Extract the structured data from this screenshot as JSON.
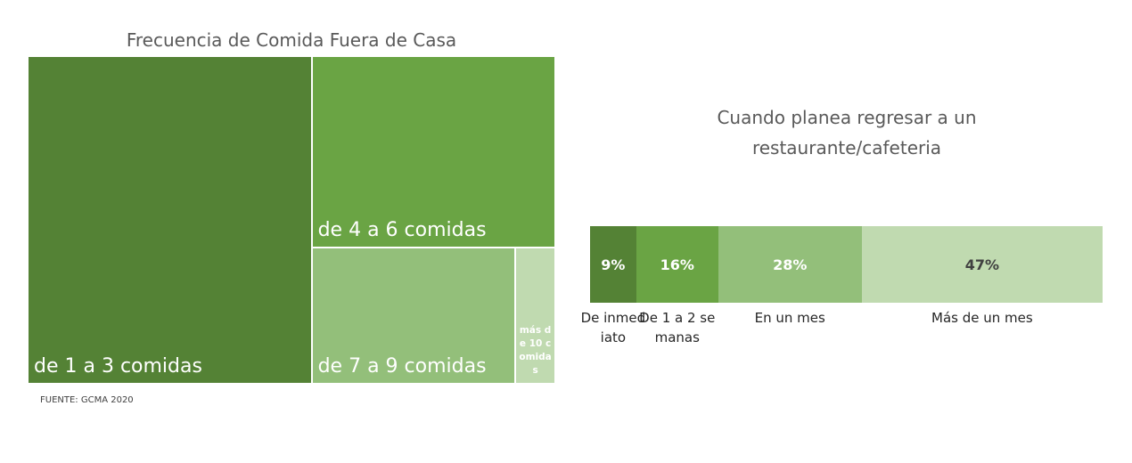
{
  "chart_data": [
    {
      "type": "treemap",
      "title": "Frecuencia de Comida Fuera de Casa",
      "categories": [
        "de 1 a 3 comidas",
        "de 4 a 6 comidas",
        "de 7 a 9 comidas",
        "más de 10 comidas"
      ],
      "values": [
        54,
        27,
        16,
        3
      ],
      "colors": [
        "#548235",
        "#6aa444",
        "#93bf7a",
        "#c0dab0"
      ]
    },
    {
      "type": "bar",
      "orientation": "horizontal-stacked",
      "title": "Cuando planea regresar a un restaurante/cafeteria",
      "categories": [
        "De inmediato",
        "De 1 a 2 semanas",
        "En un mes",
        "Más de un mes"
      ],
      "values": [
        9,
        16,
        28,
        47
      ],
      "value_labels": [
        "9%",
        "16%",
        "28%",
        "47%"
      ],
      "colors": [
        "#548235",
        "#6aa444",
        "#93bf7a",
        "#c0dab0"
      ],
      "label_colors": [
        "#ffffff",
        "#ffffff",
        "#ffffff",
        "#404040"
      ]
    }
  ],
  "source": "FUENTE: GCMA 2020"
}
